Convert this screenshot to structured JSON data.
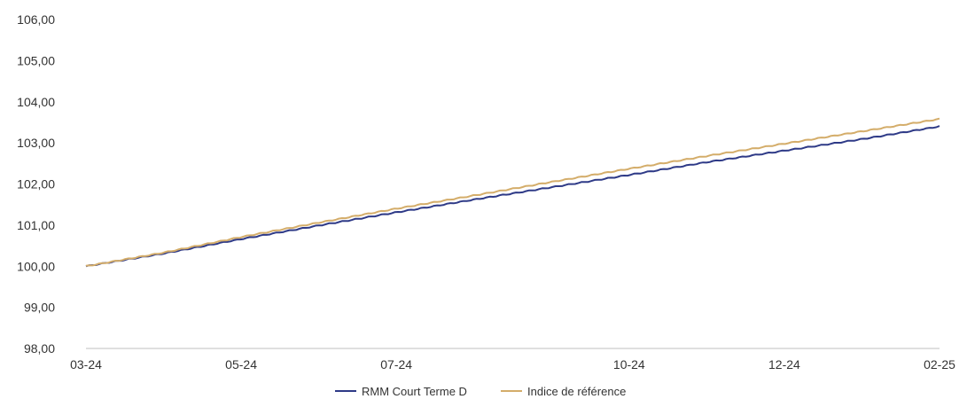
{
  "chart_data": {
    "type": "line",
    "title": "",
    "xlabel": "",
    "ylabel": "",
    "ylim": [
      98,
      106
    ],
    "yticks": [
      "98,00",
      "99,00",
      "100,00",
      "101,00",
      "102,00",
      "103,00",
      "104,00",
      "105,00",
      "106,00"
    ],
    "xticks": [
      "03-24",
      "05-24",
      "07-24",
      "10-24",
      "12-24",
      "02-25"
    ],
    "x": [
      "03-24",
      "04-24",
      "05-24",
      "06-24",
      "07-24",
      "08-24",
      "09-24",
      "10-24",
      "11-24",
      "12-24",
      "01-25",
      "02-25"
    ],
    "grid": false,
    "legend_position": "bottom",
    "series": [
      {
        "name": "RMM Court Terme D",
        "color": "#2e3a87",
        "values": [
          100.0,
          100.31,
          100.66,
          100.99,
          101.31,
          101.62,
          101.92,
          102.22,
          102.53,
          102.81,
          103.09,
          103.4
        ]
      },
      {
        "name": "Indice de référence",
        "color": "#d4ad6a",
        "values": [
          100.0,
          100.33,
          100.71,
          101.06,
          101.4,
          101.72,
          102.05,
          102.37,
          102.68,
          102.98,
          103.28,
          103.58
        ]
      }
    ]
  }
}
